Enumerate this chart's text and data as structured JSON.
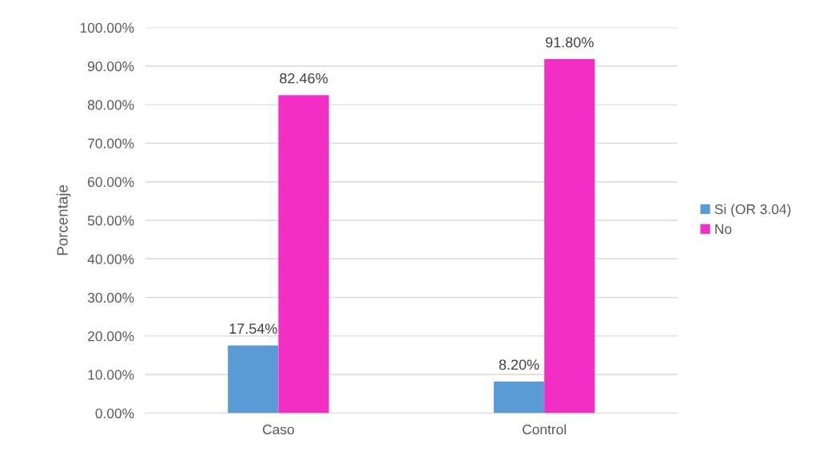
{
  "chart_data": {
    "type": "bar",
    "ylabel": "Porcentaje",
    "categories": [
      "Caso",
      "Control"
    ],
    "series": [
      {
        "name": "Si (OR 3.04)",
        "color": "#5b9bd5",
        "values": [
          17.54,
          8.2
        ],
        "value_labels": [
          "17.54%",
          "8.20%"
        ]
      },
      {
        "name": "No",
        "color": "#f22ec7",
        "values": [
          82.46,
          91.8
        ],
        "value_labels": [
          "82.46%",
          "91.80%"
        ]
      }
    ],
    "ylim": [
      0,
      100
    ],
    "yticks": [
      {
        "value": 0,
        "label": "0.00%"
      },
      {
        "value": 10,
        "label": "10.00%"
      },
      {
        "value": 20,
        "label": "20.00%"
      },
      {
        "value": 30,
        "label": "30.00%"
      },
      {
        "value": 40,
        "label": "40.00%"
      },
      {
        "value": 50,
        "label": "50.00%"
      },
      {
        "value": 60,
        "label": "60.00%"
      },
      {
        "value": 70,
        "label": "70.00%"
      },
      {
        "value": 80,
        "label": "80.00%"
      },
      {
        "value": 90,
        "label": "90.00%"
      },
      {
        "value": 100,
        "label": "100.00%"
      }
    ],
    "grid": "y",
    "legend": "right"
  }
}
